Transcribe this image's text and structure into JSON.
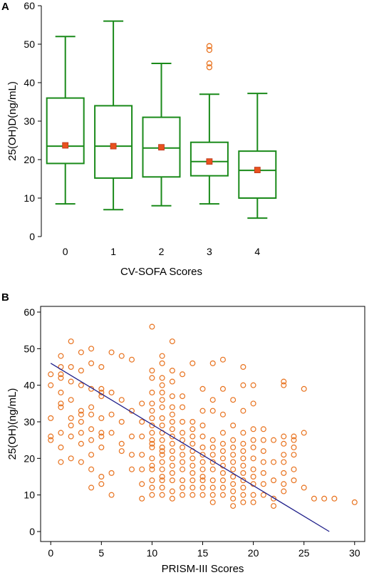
{
  "chart_data": [
    {
      "panel": "A",
      "type": "box",
      "xlabel": "CV-SOFA Scores",
      "ylabel": "25(OH)D(ng/mL)",
      "ylim": [
        0,
        60
      ],
      "yticks": [
        0,
        10,
        20,
        30,
        40,
        50,
        60
      ],
      "categories": [
        "0",
        "1",
        "2",
        "3",
        "4"
      ],
      "box_color": "#1a8a1a",
      "mean_color": "#e8521e",
      "outlier_color": "#e8721e",
      "boxes": [
        {
          "category": "0",
          "whisker_low": 8.5,
          "q1": 19,
          "median": 23.5,
          "q3": 36,
          "whisker_high": 52,
          "mean": 23.7,
          "outliers": []
        },
        {
          "category": "1",
          "whisker_low": 7,
          "q1": 15.2,
          "median": 23.5,
          "q3": 34,
          "whisker_high": 56,
          "mean": 23.5,
          "outliers": []
        },
        {
          "category": "2",
          "whisker_low": 8,
          "q1": 15.5,
          "median": 23,
          "q3": 31,
          "whisker_high": 45,
          "mean": 23.2,
          "outliers": []
        },
        {
          "category": "3",
          "whisker_low": 8.5,
          "q1": 15.8,
          "median": 19.5,
          "q3": 24.5,
          "whisker_high": 37,
          "mean": 19.5,
          "outliers": [
            44,
            45,
            48.5,
            49.5
          ]
        },
        {
          "category": "4",
          "whisker_low": 4.8,
          "q1": 10,
          "median": 17.2,
          "q3": 22.2,
          "whisker_high": 37.2,
          "mean": 17.3,
          "outliers": []
        }
      ]
    },
    {
      "panel": "B",
      "type": "scatter",
      "xlabel": "PRISM-III Scores",
      "ylabel": "25(OH)(ng/mL)",
      "xlim": [
        -1,
        31
      ],
      "ylim": [
        0,
        60
      ],
      "xticks": [
        0,
        5,
        10,
        15,
        20,
        25,
        30
      ],
      "yticks": [
        0,
        10,
        20,
        30,
        40,
        50,
        60
      ],
      "point_color": "#e8721e",
      "line_color": "#1f1f8a",
      "regression_line": {
        "x": [
          0,
          27.5
        ],
        "y": [
          46,
          0
        ]
      },
      "points": [
        [
          0,
          25
        ],
        [
          0,
          31
        ],
        [
          0,
          40
        ],
        [
          0,
          43
        ],
        [
          0,
          26
        ],
        [
          1,
          19
        ],
        [
          1,
          23
        ],
        [
          1,
          27
        ],
        [
          1,
          34
        ],
        [
          1,
          35
        ],
        [
          1,
          38
        ],
        [
          1,
          42
        ],
        [
          1,
          43
        ],
        [
          1,
          48
        ],
        [
          1,
          45
        ],
        [
          2,
          20
        ],
        [
          2,
          26
        ],
        [
          2,
          29
        ],
        [
          2,
          31
        ],
        [
          2,
          36
        ],
        [
          2,
          41
        ],
        [
          2,
          45
        ],
        [
          2,
          52
        ],
        [
          3,
          19
        ],
        [
          3,
          24
        ],
        [
          3,
          27
        ],
        [
          3,
          30
        ],
        [
          3,
          32
        ],
        [
          3,
          33
        ],
        [
          3,
          40
        ],
        [
          3,
          44
        ],
        [
          3,
          49
        ],
        [
          4,
          12
        ],
        [
          4,
          17
        ],
        [
          4,
          21
        ],
        [
          4,
          25
        ],
        [
          4,
          28
        ],
        [
          4,
          32
        ],
        [
          4,
          34
        ],
        [
          4,
          39
        ],
        [
          4,
          46
        ],
        [
          4,
          50
        ],
        [
          5,
          13
        ],
        [
          5,
          15
        ],
        [
          5,
          23
        ],
        [
          5,
          26
        ],
        [
          5,
          27
        ],
        [
          5,
          31
        ],
        [
          5,
          37
        ],
        [
          5,
          38
        ],
        [
          5,
          39
        ],
        [
          5,
          45
        ],
        [
          6,
          10
        ],
        [
          6,
          16
        ],
        [
          6,
          27
        ],
        [
          6,
          32
        ],
        [
          6,
          38
        ],
        [
          6,
          49
        ],
        [
          7,
          22
        ],
        [
          7,
          24
        ],
        [
          7,
          30
        ],
        [
          7,
          36
        ],
        [
          7,
          48
        ],
        [
          8,
          17
        ],
        [
          8,
          21
        ],
        [
          8,
          26
        ],
        [
          8,
          33
        ],
        [
          8,
          47
        ],
        [
          9,
          9
        ],
        [
          9,
          13
        ],
        [
          9,
          17
        ],
        [
          9,
          21
        ],
        [
          9,
          26
        ],
        [
          9,
          30
        ],
        [
          9,
          35
        ],
        [
          10,
          10
        ],
        [
          10,
          12
        ],
        [
          10,
          14
        ],
        [
          10,
          17
        ],
        [
          10,
          18
        ],
        [
          10,
          20
        ],
        [
          10,
          23
        ],
        [
          10,
          24
        ],
        [
          10,
          25
        ],
        [
          10,
          27
        ],
        [
          10,
          29
        ],
        [
          10,
          31
        ],
        [
          10,
          33
        ],
        [
          10,
          35
        ],
        [
          10,
          38
        ],
        [
          10,
          42
        ],
        [
          10,
          44
        ],
        [
          10,
          56
        ],
        [
          11,
          10
        ],
        [
          11,
          12
        ],
        [
          11,
          14
        ],
        [
          11,
          15
        ],
        [
          11,
          17
        ],
        [
          11,
          19
        ],
        [
          11,
          21
        ],
        [
          11,
          22
        ],
        [
          11,
          23
        ],
        [
          11,
          25
        ],
        [
          11,
          27
        ],
        [
          11,
          29
        ],
        [
          11,
          31
        ],
        [
          11,
          34
        ],
        [
          11,
          36
        ],
        [
          11,
          38
        ],
        [
          11,
          40
        ],
        [
          11,
          42
        ],
        [
          11,
          46
        ],
        [
          11,
          48
        ],
        [
          12,
          9
        ],
        [
          12,
          11
        ],
        [
          12,
          14
        ],
        [
          12,
          16
        ],
        [
          12,
          18
        ],
        [
          12,
          20
        ],
        [
          12,
          22
        ],
        [
          12,
          24
        ],
        [
          12,
          26
        ],
        [
          12,
          28
        ],
        [
          12,
          30
        ],
        [
          12,
          32
        ],
        [
          12,
          34
        ],
        [
          12,
          37
        ],
        [
          12,
          41
        ],
        [
          12,
          44
        ],
        [
          12,
          52
        ],
        [
          13,
          10
        ],
        [
          13,
          12
        ],
        [
          13,
          14
        ],
        [
          13,
          17
        ],
        [
          13,
          19
        ],
        [
          13,
          21
        ],
        [
          13,
          23
        ],
        [
          13,
          25
        ],
        [
          13,
          27
        ],
        [
          13,
          30
        ],
        [
          13,
          34
        ],
        [
          13,
          37
        ],
        [
          13,
          43
        ],
        [
          14,
          10
        ],
        [
          14,
          12
        ],
        [
          14,
          14
        ],
        [
          14,
          16
        ],
        [
          14,
          18
        ],
        [
          14,
          20
        ],
        [
          14,
          22
        ],
        [
          14,
          24
        ],
        [
          14,
          26
        ],
        [
          14,
          28
        ],
        [
          14,
          30
        ],
        [
          14,
          46
        ],
        [
          15,
          10
        ],
        [
          15,
          12
        ],
        [
          15,
          14
        ],
        [
          15,
          15
        ],
        [
          15,
          17
        ],
        [
          15,
          19
        ],
        [
          15,
          21
        ],
        [
          15,
          23
        ],
        [
          15,
          26
        ],
        [
          15,
          29
        ],
        [
          15,
          33
        ],
        [
          15,
          39
        ],
        [
          16,
          8
        ],
        [
          16,
          10
        ],
        [
          16,
          12
        ],
        [
          16,
          14
        ],
        [
          16,
          17
        ],
        [
          16,
          19
        ],
        [
          16,
          21
        ],
        [
          16,
          23
        ],
        [
          16,
          25
        ],
        [
          16,
          33
        ],
        [
          16,
          36
        ],
        [
          16,
          46
        ],
        [
          17,
          10
        ],
        [
          17,
          12
        ],
        [
          17,
          14
        ],
        [
          17,
          16
        ],
        [
          17,
          18
        ],
        [
          17,
          20
        ],
        [
          17,
          22
        ],
        [
          17,
          24
        ],
        [
          17,
          27
        ],
        [
          17,
          32
        ],
        [
          17,
          39
        ],
        [
          17,
          47
        ],
        [
          18,
          7
        ],
        [
          18,
          9
        ],
        [
          18,
          11
        ],
        [
          18,
          13
        ],
        [
          18,
          15
        ],
        [
          18,
          17
        ],
        [
          18,
          19
        ],
        [
          18,
          21
        ],
        [
          18,
          23
        ],
        [
          18,
          25
        ],
        [
          18,
          29
        ],
        [
          18,
          36
        ],
        [
          19,
          8
        ],
        [
          19,
          10
        ],
        [
          19,
          12
        ],
        [
          19,
          14
        ],
        [
          19,
          16
        ],
        [
          19,
          18
        ],
        [
          19,
          20
        ],
        [
          19,
          22
        ],
        [
          19,
          24
        ],
        [
          19,
          27
        ],
        [
          19,
          33
        ],
        [
          19,
          40
        ],
        [
          19,
          45
        ],
        [
          20,
          8
        ],
        [
          20,
          10
        ],
        [
          20,
          13
        ],
        [
          20,
          15
        ],
        [
          20,
          17
        ],
        [
          20,
          20
        ],
        [
          20,
          23
        ],
        [
          20,
          25
        ],
        [
          20,
          28
        ],
        [
          20,
          35
        ],
        [
          20,
          40
        ],
        [
          21,
          10
        ],
        [
          21,
          13
        ],
        [
          21,
          16
        ],
        [
          21,
          19
        ],
        [
          21,
          22
        ],
        [
          21,
          25
        ],
        [
          21,
          28
        ],
        [
          22,
          7
        ],
        [
          22,
          9
        ],
        [
          22,
          14
        ],
        [
          22,
          19
        ],
        [
          22,
          25
        ],
        [
          23,
          11
        ],
        [
          23,
          13
        ],
        [
          23,
          16
        ],
        [
          23,
          19
        ],
        [
          23,
          21
        ],
        [
          23,
          24
        ],
        [
          23,
          26
        ],
        [
          23,
          40
        ],
        [
          23,
          41
        ],
        [
          24,
          14
        ],
        [
          24,
          17
        ],
        [
          24,
          21
        ],
        [
          24,
          23
        ],
        [
          24,
          25
        ],
        [
          24,
          26
        ],
        [
          25,
          12
        ],
        [
          25,
          27
        ],
        [
          25,
          39
        ],
        [
          26,
          9
        ],
        [
          27,
          9
        ],
        [
          28,
          9
        ],
        [
          30,
          8
        ]
      ]
    }
  ]
}
